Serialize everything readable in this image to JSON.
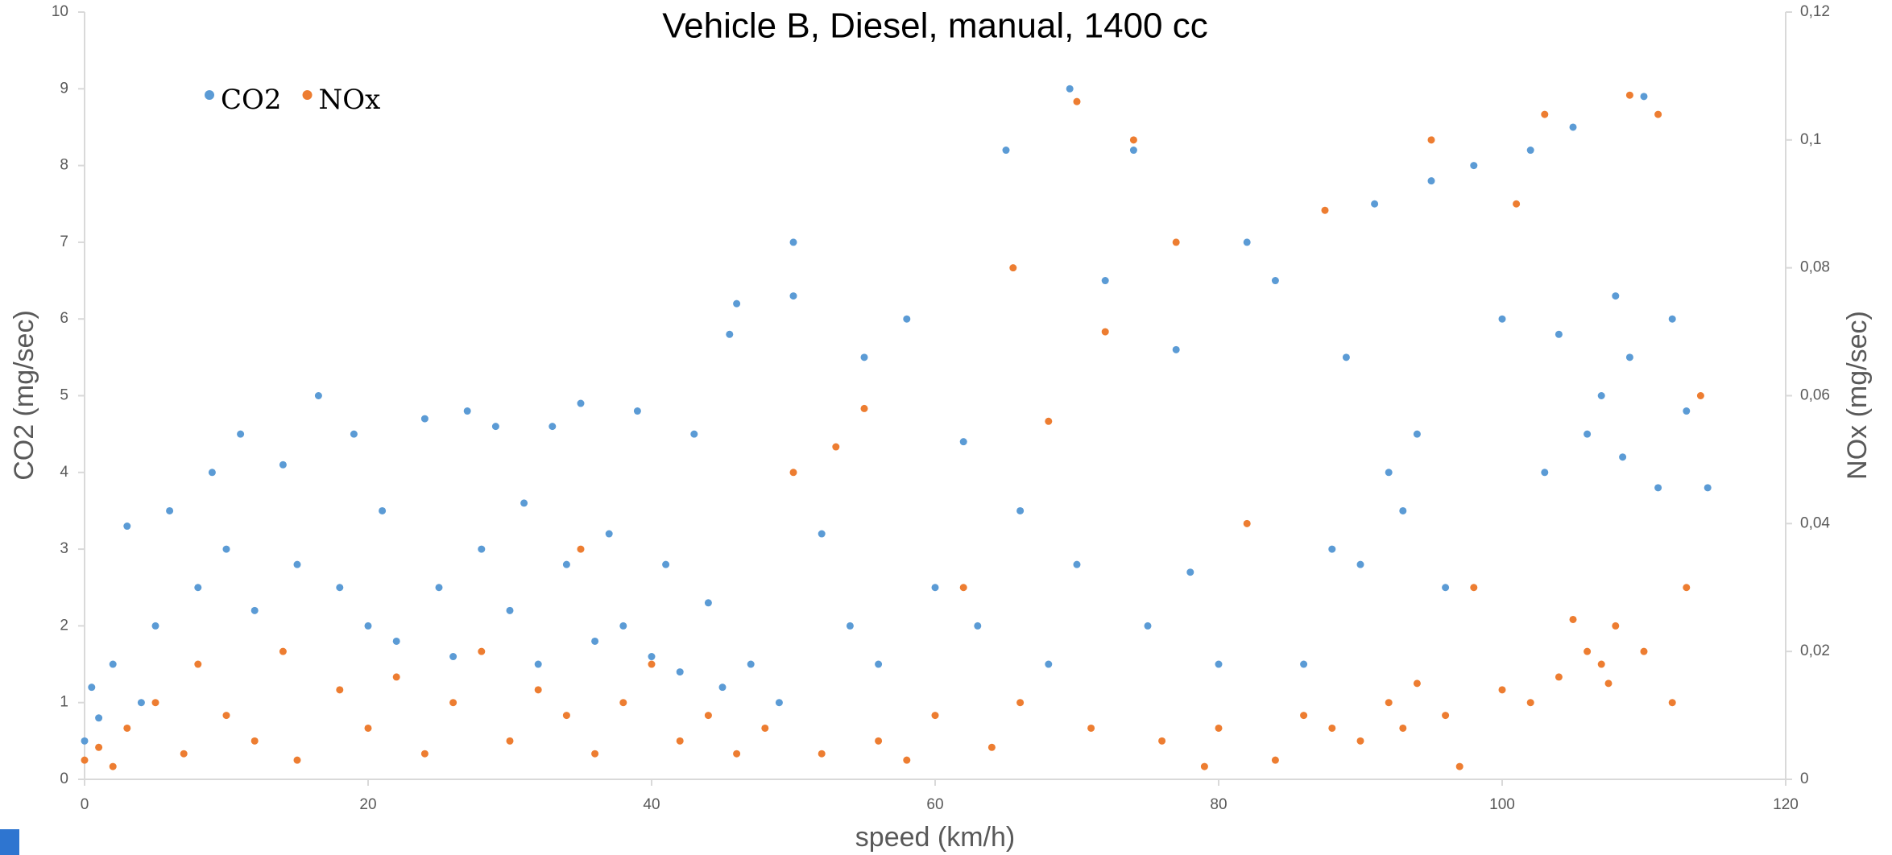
{
  "chart_data": {
    "type": "scatter",
    "title": "Vehicle B, Diesel, manual, 1400 cc",
    "x_label": "speed (km/h)",
    "y_label": "CO2 (mg/sec)",
    "y2_label": "NOx (mg/sec)",
    "xlim": [
      0,
      120
    ],
    "xticks": [
      0,
      20,
      40,
      60,
      80,
      100,
      120
    ],
    "ylim": [
      0,
      10
    ],
    "yticks": [
      0,
      1,
      2,
      3,
      4,
      5,
      6,
      7,
      8,
      9,
      10
    ],
    "y2lim": [
      0,
      0.12
    ],
    "y2ticks": [
      0,
      {
        "value": 0.02,
        "label": "0,02"
      },
      {
        "value": 0.04,
        "label": "0,04"
      },
      {
        "value": 0.06,
        "label": "0,06"
      },
      {
        "value": 0.08,
        "label": "0,08"
      },
      {
        "value": 0.1,
        "label": "0,1"
      },
      {
        "value": 0.12,
        "label": "0,12"
      }
    ],
    "grid": false,
    "legend": "upper left",
    "series": [
      {
        "name": "CO2",
        "color": "#5b9bd5",
        "x": [
          0,
          0.5,
          1,
          2,
          3,
          4,
          5,
          6,
          8,
          9,
          10,
          11,
          12,
          14,
          15,
          16.5,
          18,
          19,
          20,
          21,
          22,
          24,
          25,
          26,
          27,
          28,
          29,
          30,
          31,
          32,
          33,
          34,
          35,
          36,
          37,
          38,
          39,
          40,
          41,
          42,
          43,
          44,
          45,
          45.5,
          46,
          47,
          49,
          50,
          50,
          52,
          54,
          55,
          56,
          58,
          60,
          62,
          63,
          65,
          66,
          68,
          69.5,
          70,
          72,
          74,
          75,
          77,
          78,
          80,
          82,
          84,
          86,
          88,
          89,
          90,
          91,
          92,
          93,
          94,
          95,
          96,
          98,
          100,
          102,
          103,
          104,
          105,
          106,
          107,
          108,
          108.5,
          109,
          110,
          111,
          112,
          113,
          114.5
        ],
        "values": [
          0.5,
          1.2,
          0.8,
          1.5,
          3.3,
          1.0,
          2.0,
          3.5,
          2.5,
          4.0,
          3.0,
          4.5,
          2.2,
          4.1,
          2.8,
          5.0,
          2.5,
          4.5,
          2.0,
          3.5,
          1.8,
          4.7,
          2.5,
          1.6,
          4.8,
          3.0,
          4.6,
          2.2,
          3.6,
          1.5,
          4.6,
          2.8,
          4.9,
          1.8,
          3.2,
          2.0,
          4.8,
          1.6,
          2.8,
          1.4,
          4.5,
          2.3,
          1.2,
          5.8,
          6.2,
          1.5,
          1.0,
          7.0,
          6.3,
          3.2,
          2.0,
          5.5,
          1.5,
          6.0,
          2.5,
          4.4,
          2.0,
          8.2,
          3.5,
          1.5,
          9.0,
          2.8,
          6.5,
          8.2,
          2.0,
          5.6,
          2.7,
          1.5,
          7.0,
          6.5,
          1.5,
          3.0,
          5.5,
          2.8,
          7.5,
          4.0,
          3.5,
          4.5,
          7.8,
          2.5,
          8.0,
          6.0,
          8.2,
          4.0,
          5.8,
          8.5,
          4.5,
          5.0,
          6.3,
          4.2,
          5.5,
          8.9,
          3.8,
          6.0,
          4.8,
          3.8
        ]
      },
      {
        "name": "NOx",
        "color": "#ed7d31",
        "axis": "y2",
        "x": [
          0,
          1,
          2,
          3,
          5,
          7,
          8,
          10,
          12,
          14,
          15,
          18,
          20,
          22,
          24,
          26,
          28,
          30,
          32,
          34,
          35,
          36,
          38,
          40,
          42,
          44,
          46,
          48,
          50,
          52,
          53,
          55,
          56,
          58,
          60,
          62,
          64,
          65.5,
          66,
          68,
          70,
          71,
          72,
          74,
          76,
          77,
          79,
          80,
          82,
          84,
          86,
          87.5,
          88,
          90,
          92,
          93,
          94,
          95,
          96,
          97,
          98,
          100,
          101,
          102,
          103,
          104,
          105,
          106,
          107,
          107.5,
          108,
          109,
          110,
          111,
          112,
          113,
          114
        ],
        "values": [
          0.003,
          0.005,
          0.002,
          0.008,
          0.012,
          0.004,
          0.018,
          0.01,
          0.006,
          0.02,
          0.003,
          0.014,
          0.008,
          0.016,
          0.004,
          0.012,
          0.02,
          0.006,
          0.014,
          0.01,
          0.036,
          0.004,
          0.012,
          0.018,
          0.006,
          0.01,
          0.004,
          0.008,
          0.048,
          0.004,
          0.052,
          0.058,
          0.006,
          0.003,
          0.01,
          0.03,
          0.005,
          0.08,
          0.012,
          0.056,
          0.106,
          0.008,
          0.07,
          0.1,
          0.006,
          0.084,
          0.002,
          0.008,
          0.04,
          0.003,
          0.01,
          0.089,
          0.008,
          0.006,
          0.012,
          0.008,
          0.015,
          0.1,
          0.01,
          0.002,
          0.03,
          0.014,
          0.09,
          0.012,
          0.104,
          0.016,
          0.025,
          0.02,
          0.018,
          0.015,
          0.024,
          0.107,
          0.02,
          0.104,
          0.012,
          0.03,
          0.06
        ]
      }
    ]
  }
}
